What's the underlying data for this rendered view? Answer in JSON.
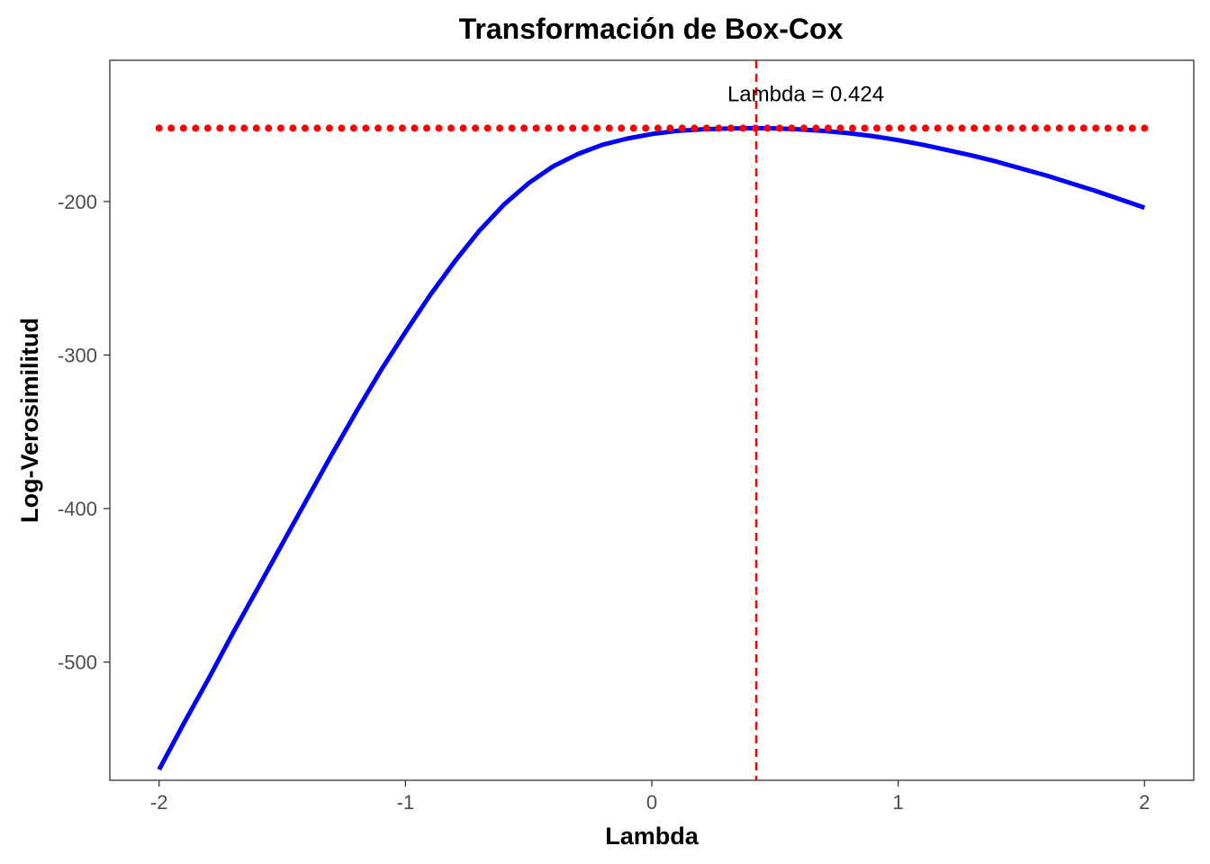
{
  "chart_data": {
    "type": "line",
    "title": "Transformación de Box-Cox",
    "xlabel": "Lambda",
    "ylabel": "Log-Verosimilitud",
    "xlim": [
      -2.2,
      2.2
    ],
    "ylim": [
      -577,
      -108
    ],
    "x_ticks": [
      -2,
      -1,
      0,
      1,
      2
    ],
    "x_tick_labels": [
      "-2",
      "-1",
      "0",
      "1",
      "2"
    ],
    "y_ticks": [
      -200,
      -300,
      -400,
      -500
    ],
    "y_tick_labels": [
      "-200",
      "-300",
      "-400",
      "-500"
    ],
    "grid": false,
    "series": [
      {
        "kind": "curve",
        "color": "#0000ff",
        "points": [
          [
            -2.0,
            -570
          ],
          [
            -1.9,
            -540
          ],
          [
            -1.8,
            -511
          ],
          [
            -1.7,
            -481
          ],
          [
            -1.6,
            -452
          ],
          [
            -1.5,
            -423
          ],
          [
            -1.4,
            -394
          ],
          [
            -1.3,
            -365
          ],
          [
            -1.2,
            -337
          ],
          [
            -1.1,
            -310
          ],
          [
            -1.0,
            -285
          ],
          [
            -0.9,
            -261
          ],
          [
            -0.8,
            -239
          ],
          [
            -0.7,
            -219
          ],
          [
            -0.6,
            -202
          ],
          [
            -0.5,
            -188
          ],
          [
            -0.4,
            -177
          ],
          [
            -0.3,
            -169
          ],
          [
            -0.2,
            -163
          ],
          [
            -0.1,
            -159
          ],
          [
            0.0,
            -156
          ],
          [
            0.1,
            -154
          ],
          [
            0.2,
            -153
          ],
          [
            0.3,
            -152.5
          ],
          [
            0.4,
            -152.2
          ],
          [
            0.5,
            -152.3
          ],
          [
            0.6,
            -153
          ],
          [
            0.7,
            -154
          ],
          [
            0.8,
            -155.5
          ],
          [
            0.9,
            -157.5
          ],
          [
            1.0,
            -160
          ],
          [
            1.1,
            -163
          ],
          [
            1.2,
            -166.5
          ],
          [
            1.3,
            -170
          ],
          [
            1.4,
            -174
          ],
          [
            1.5,
            -178.5
          ],
          [
            1.6,
            -183
          ],
          [
            1.7,
            -188
          ],
          [
            1.8,
            -193
          ],
          [
            1.9,
            -198.5
          ],
          [
            2.0,
            -204
          ]
        ]
      },
      {
        "kind": "dotted-hline",
        "color": "#ff0000",
        "y": -152.2,
        "x_range": [
          -2.0,
          2.0
        ],
        "dot_count": 82
      },
      {
        "kind": "dashed-vline",
        "color": "#ff0000",
        "x": 0.424
      }
    ],
    "annotation": {
      "text": "Lambda = 0.424",
      "x": 0.625,
      "y": -130
    }
  }
}
